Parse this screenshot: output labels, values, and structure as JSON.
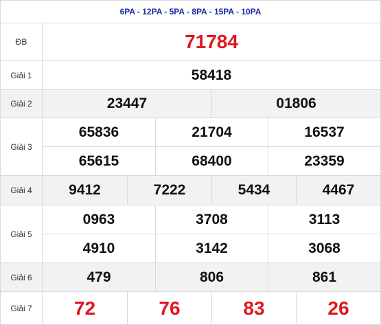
{
  "header": "6PA - 12PA - 5PA - 8PA - 15PA - 10PA",
  "db": {
    "label": "ĐB",
    "value": "71784"
  },
  "g1": {
    "label": "Giải 1",
    "values": [
      "58418"
    ]
  },
  "g2": {
    "label": "Giải 2",
    "values": [
      "23447",
      "01806"
    ]
  },
  "g3": {
    "label": "Giải 3",
    "values": [
      "65836",
      "21704",
      "16537",
      "65615",
      "68400",
      "23359"
    ]
  },
  "g4": {
    "label": "Giải 4",
    "values": [
      "9412",
      "7222",
      "5434",
      "4467"
    ]
  },
  "g5": {
    "label": "Giải 5",
    "values": [
      "0963",
      "3708",
      "3113",
      "4910",
      "3142",
      "3068"
    ]
  },
  "g6": {
    "label": "Giải 6",
    "values": [
      "479",
      "806",
      "861"
    ]
  },
  "g7": {
    "label": "Giải 7",
    "values": [
      "72",
      "76",
      "83",
      "26"
    ]
  },
  "colors": {
    "header_text": "#1a2aa6",
    "special_text": "#e0161f",
    "row_gray": "#f2f2f2",
    "border": "#d9d9d9"
  }
}
